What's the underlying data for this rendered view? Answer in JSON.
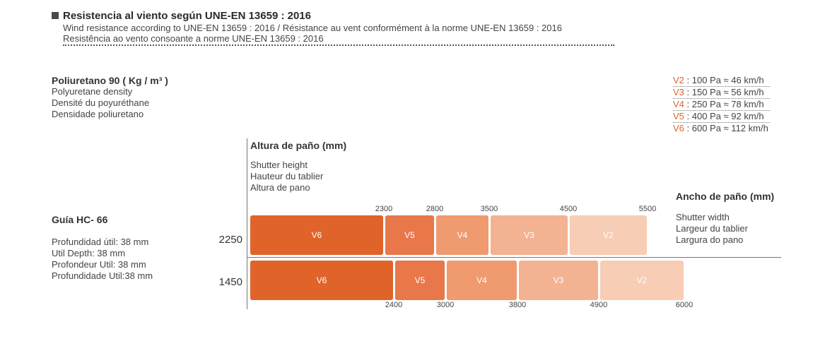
{
  "header": {
    "title": "Resistencia al viento según UNE-EN 13659 : 2016",
    "sub_en_fr": "Wind resistance according to UNE-EN 13659 : 2016 / Résistance au vent conformément à la norme UNE-EN 13659 : 2016",
    "sub_pt": "Resistência ao vento consoante a norme UNE-EN 13659 : 2016"
  },
  "density": {
    "lead": "Poliuretano 90 ( Kg / m³ )",
    "lines": [
      "Polyuretane density",
      "Densité du poyuréthane",
      "Densidade poliuretano"
    ]
  },
  "legend": [
    {
      "key": "V2",
      "text": " : 100 Pa ≈ 46 km/h"
    },
    {
      "key": "V3",
      "text": " : 150 Pa ≈ 56 km/h"
    },
    {
      "key": "V4",
      "text": " : 250 Pa ≈ 78 km/h"
    },
    {
      "key": "V5",
      "text": " : 400 Pa ≈ 92 km/h"
    },
    {
      "key": "V6",
      "text": " : 600 Pa ≈ 112 km/h"
    }
  ],
  "guide": {
    "lead": "Guía HC- 66",
    "lines": [
      "Profundidad útil: 38  mm",
      "Util Depth: 38 mm",
      "Profondeur Util: 38  mm",
      "Profundidade Util:38  mm"
    ]
  },
  "height_label": {
    "lead": "Altura de paño (mm)",
    "lines": [
      "Shutter height",
      "Hauteur du tablier",
      "Altura de pano"
    ]
  },
  "width_label": {
    "lead": "Ancho de paño (mm)",
    "lines": [
      "Shutter width",
      "Largeur du tablier",
      "Largura do pano"
    ]
  },
  "colors": {
    "V6": "#e0642a",
    "V5": "#e8774a",
    "V4": "#ef9a6f",
    "V3": "#f3b292",
    "V2": "#f7cdb5"
  },
  "chart_data": {
    "type": "bar",
    "orientation": "horizontal-stacked",
    "rows": [
      {
        "height": "2250",
        "segments": [
          {
            "class": "V6",
            "to": 2300
          },
          {
            "class": "V5",
            "to": 2800
          },
          {
            "class": "V4",
            "to": 3500
          },
          {
            "class": "V3",
            "to": 4500
          },
          {
            "class": "V2",
            "to": 5500
          }
        ],
        "tick_labels": [
          "2300",
          "2800",
          "3500",
          "4500",
          "5500"
        ]
      },
      {
        "height": "1450",
        "segments": [
          {
            "class": "V6",
            "to": 2400
          },
          {
            "class": "V5",
            "to": 3000
          },
          {
            "class": "V4",
            "to": 3800
          },
          {
            "class": "V3",
            "to": 4900
          },
          {
            "class": "V2",
            "to": 6000
          }
        ],
        "tick_labels": [
          "2400",
          "3000",
          "3800",
          "4900",
          "6000"
        ]
      }
    ],
    "xlabel": "Ancho de paño (mm)",
    "ylabel": "Altura de paño (mm)"
  }
}
